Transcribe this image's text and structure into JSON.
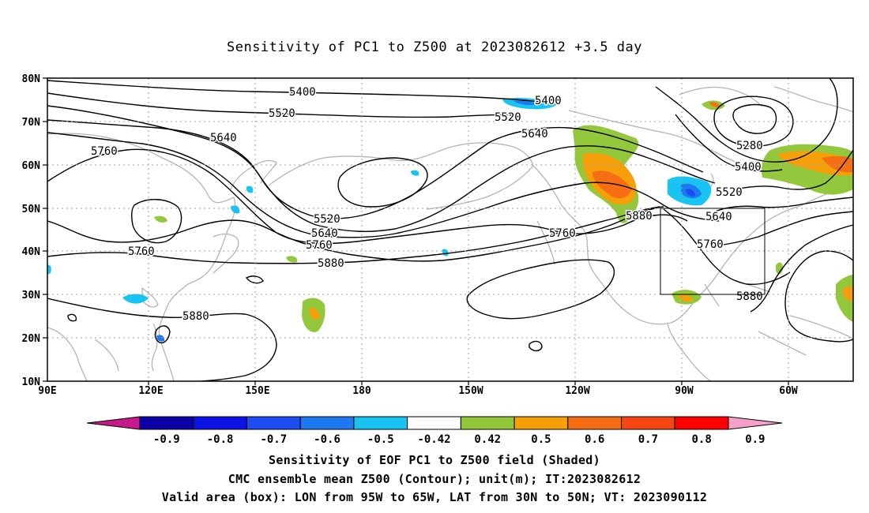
{
  "title": "Sensitivity of PC1 to Z500 at 2023082612 +3.5 day",
  "map": {
    "lat_labels": [
      "80N",
      "70N",
      "60N",
      "50N",
      "40N",
      "30N",
      "20N",
      "10N"
    ],
    "lon_labels": [
      "90E",
      "120E",
      "150E",
      "180",
      "150W",
      "120W",
      "90W",
      "60W"
    ],
    "contour_labels": [
      {
        "text": "5400",
        "id": "a"
      },
      {
        "text": "5520",
        "id": "b"
      },
      {
        "text": "5640",
        "id": "c"
      },
      {
        "text": "5760",
        "id": "d"
      },
      {
        "text": "5760",
        "id": "e"
      },
      {
        "text": "5520",
        "id": "f"
      },
      {
        "text": "5640",
        "id": "g"
      },
      {
        "text": "5760",
        "id": "h"
      },
      {
        "text": "5880",
        "id": "i"
      },
      {
        "text": "5880",
        "id": "j"
      },
      {
        "text": "5400",
        "id": "k"
      },
      {
        "text": "5520",
        "id": "l"
      },
      {
        "text": "5640",
        "id": "m"
      },
      {
        "text": "5760",
        "id": "n"
      },
      {
        "text": "5880",
        "id": "o"
      },
      {
        "text": "5280",
        "id": "p"
      },
      {
        "text": "5400",
        "id": "q"
      },
      {
        "text": "5520",
        "id": "r"
      },
      {
        "text": "5640",
        "id": "s"
      },
      {
        "text": "5760",
        "id": "t"
      },
      {
        "text": "5880",
        "id": "u"
      }
    ],
    "valid_box": {
      "lon_from": "95W",
      "lon_to": "65W",
      "lat_from": "30N",
      "lat_to": "50N"
    }
  },
  "colorbar": {
    "labels": [
      "-0.9",
      "-0.8",
      "-0.7",
      "-0.6",
      "-0.5",
      "-0.42",
      "0.42",
      "0.5",
      "0.6",
      "0.7",
      "0.8",
      "0.9"
    ],
    "colors": [
      "#0a00a8",
      "#0a12e6",
      "#1d4cf2",
      "#1e78f2",
      "#19c3f2",
      "#ffffff",
      "#94c83c",
      "#f5a00a",
      "#f56e14",
      "#f54614",
      "#ff0000"
    ],
    "end_colors": {
      "low": "#c8198c",
      "high": "#f5a0c8"
    }
  },
  "footer": {
    "line1": "Sensitivity of EOF PC1 to Z500 field (Shaded)",
    "line2": "CMC ensemble mean Z500 (Contour); unit(m); IT:2023082612",
    "line3": "Valid area (box): LON from 95W to 65W, LAT from 30N to 50N; VT: 2023090112"
  }
}
